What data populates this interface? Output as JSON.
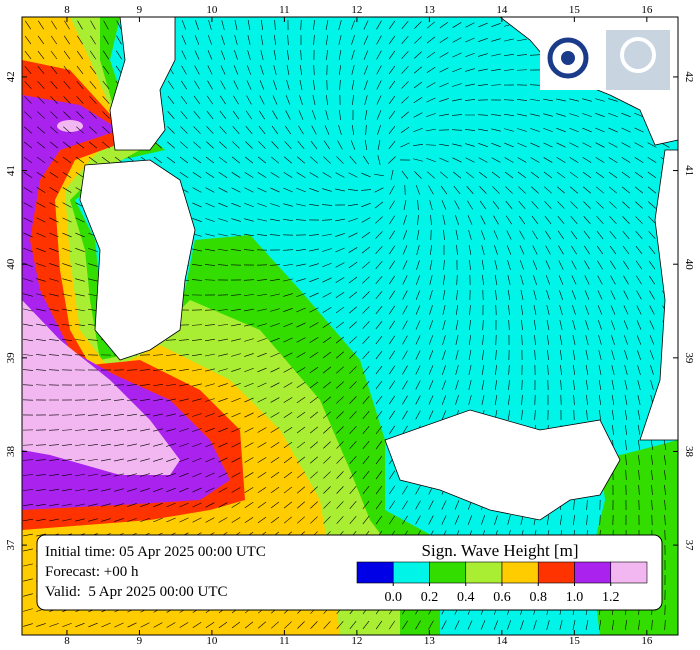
{
  "map": {
    "lon_range": [
      7.38,
      16.43
    ],
    "lat_range": [
      36.04,
      42.64
    ],
    "lon_ticks": [
      8,
      9,
      10,
      11,
      12,
      13,
      14,
      15,
      16
    ],
    "lat_ticks": [
      37,
      38,
      39,
      40,
      41,
      42
    ],
    "info": {
      "initial": "Initial time: 05 Apr 2025 00:00 UTC",
      "forecast": "Forecast: +00 h",
      "valid": "Valid:  5 Apr 2025 00:00 UTC"
    },
    "colorbar": {
      "title": "Sign. Wave Height [m]",
      "colors": [
        "#0000e6",
        "#00f5e8",
        "#33dd00",
        "#aaee33",
        "#ffcc00",
        "#ff3300",
        "#aa22ee",
        "#f2b6f0"
      ],
      "ticks": [
        {
          "value": 0,
          "label": "0.0"
        },
        {
          "value": 0.2,
          "label": "0.2"
        },
        {
          "value": 0.4,
          "label": "0.4"
        },
        {
          "value": 0.6,
          "label": "0.6"
        },
        {
          "value": 0.8,
          "label": "0.8"
        },
        {
          "value": 1,
          "label": "1.0"
        },
        {
          "value": 1.2,
          "label": "1.2"
        }
      ]
    }
  }
}
